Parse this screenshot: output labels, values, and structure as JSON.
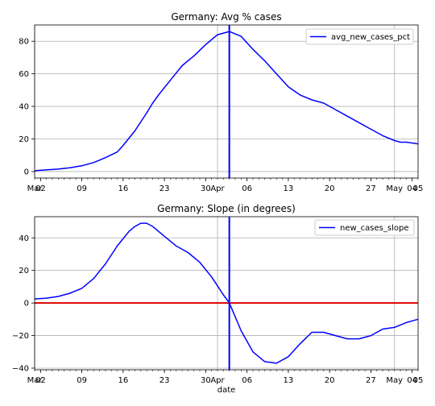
{
  "chart_data": [
    {
      "type": "line",
      "title": "Germany: Avg % cases",
      "xlabel": "",
      "ylabel": "",
      "xlim": [
        "2020-03-01",
        "2020-05-05"
      ],
      "ylim": [
        -4,
        90
      ],
      "yticks": [
        0,
        20,
        40,
        60,
        80
      ],
      "x_ticks": [
        {
          "date": "2020-03-02",
          "label": "02"
        },
        {
          "date": "2020-03-09",
          "label": "09"
        },
        {
          "date": "2020-03-16",
          "label": "16"
        },
        {
          "date": "2020-03-23",
          "label": "23"
        },
        {
          "date": "2020-03-30",
          "label": "30"
        },
        {
          "date": "2020-04-06",
          "label": "06"
        },
        {
          "date": "2020-04-13",
          "label": "13"
        },
        {
          "date": "2020-04-20",
          "label": "20"
        },
        {
          "date": "2020-04-27",
          "label": "27"
        },
        {
          "date": "2020-05-04",
          "label": "04"
        }
      ],
      "x_major_labels": [
        {
          "date": "2020-03-01",
          "label": "Mar"
        },
        {
          "date": "2020-04-01",
          "label": "Apr"
        },
        {
          "date": "2020-05-01",
          "label": "May"
        }
      ],
      "x_end_label": "05",
      "vline_date": "2020-04-03",
      "grid": true,
      "legend_position": "top-right",
      "series": [
        {
          "name": "avg_new_cases_pct",
          "color": "#0000ff",
          "x": [
            "2020-03-01",
            "2020-03-03",
            "2020-03-05",
            "2020-03-07",
            "2020-03-09",
            "2020-03-11",
            "2020-03-13",
            "2020-03-15",
            "2020-03-16",
            "2020-03-18",
            "2020-03-20",
            "2020-03-21",
            "2020-03-22",
            "2020-03-24",
            "2020-03-26",
            "2020-03-28",
            "2020-03-30",
            "2020-04-01",
            "2020-04-03",
            "2020-04-05",
            "2020-04-07",
            "2020-04-09",
            "2020-04-11",
            "2020-04-13",
            "2020-04-15",
            "2020-04-17",
            "2020-04-19",
            "2020-04-21",
            "2020-04-23",
            "2020-04-25",
            "2020-04-27",
            "2020-04-29",
            "2020-05-01",
            "2020-05-02",
            "2020-05-03",
            "2020-05-05"
          ],
          "values": [
            0.5,
            1,
            1.5,
            2.3,
            3.5,
            5.5,
            8.5,
            12,
            16,
            25,
            36,
            42,
            47,
            56,
            65,
            71,
            78,
            84,
            86,
            83,
            75,
            68,
            60,
            52,
            47,
            44,
            42,
            38,
            34,
            30,
            26,
            22,
            19,
            18,
            18,
            17
          ]
        }
      ]
    },
    {
      "type": "line",
      "title": "Germany: Slope (in degrees)",
      "xlabel": "date",
      "ylabel": "",
      "xlim": [
        "2020-03-01",
        "2020-05-05"
      ],
      "ylim": [
        -41,
        53
      ],
      "yticks": [
        -40,
        -20,
        0,
        20,
        40
      ],
      "x_ticks": [
        {
          "date": "2020-03-02",
          "label": "02"
        },
        {
          "date": "2020-03-09",
          "label": "09"
        },
        {
          "date": "2020-03-16",
          "label": "16"
        },
        {
          "date": "2020-03-23",
          "label": "23"
        },
        {
          "date": "2020-03-30",
          "label": "30"
        },
        {
          "date": "2020-04-06",
          "label": "06"
        },
        {
          "date": "2020-04-13",
          "label": "13"
        },
        {
          "date": "2020-04-20",
          "label": "20"
        },
        {
          "date": "2020-04-27",
          "label": "27"
        },
        {
          "date": "2020-05-04",
          "label": "04"
        }
      ],
      "x_major_labels": [
        {
          "date": "2020-03-01",
          "label": "Mar"
        },
        {
          "date": "2020-04-01",
          "label": "Apr"
        },
        {
          "date": "2020-05-01",
          "label": "May"
        }
      ],
      "x_end_label": "05",
      "vline_date": "2020-04-03",
      "hline_value": 0,
      "hline_color": "#dd0000",
      "grid": true,
      "legend_position": "top-right",
      "series": [
        {
          "name": "new_cases_slope",
          "color": "#0000ff",
          "x": [
            "2020-03-01",
            "2020-03-03",
            "2020-03-05",
            "2020-03-07",
            "2020-03-09",
            "2020-03-11",
            "2020-03-13",
            "2020-03-15",
            "2020-03-17",
            "2020-03-18",
            "2020-03-19",
            "2020-03-20",
            "2020-03-21",
            "2020-03-23",
            "2020-03-25",
            "2020-03-27",
            "2020-03-29",
            "2020-03-31",
            "2020-04-02",
            "2020-04-03",
            "2020-04-05",
            "2020-04-07",
            "2020-04-09",
            "2020-04-11",
            "2020-04-13",
            "2020-04-15",
            "2020-04-17",
            "2020-04-19",
            "2020-04-21",
            "2020-04-23",
            "2020-04-25",
            "2020-04-27",
            "2020-04-29",
            "2020-05-01",
            "2020-05-03",
            "2020-05-05"
          ],
          "values": [
            2.5,
            3,
            4,
            6,
            9,
            15,
            24,
            35,
            44,
            47,
            49,
            49,
            47,
            41,
            35,
            31,
            25,
            16,
            5,
            0,
            -17,
            -30,
            -36,
            -37,
            -33,
            -25,
            -18,
            -18,
            -20,
            -22,
            -22,
            -20,
            -16,
            -15,
            -12,
            -10
          ]
        }
      ]
    }
  ]
}
